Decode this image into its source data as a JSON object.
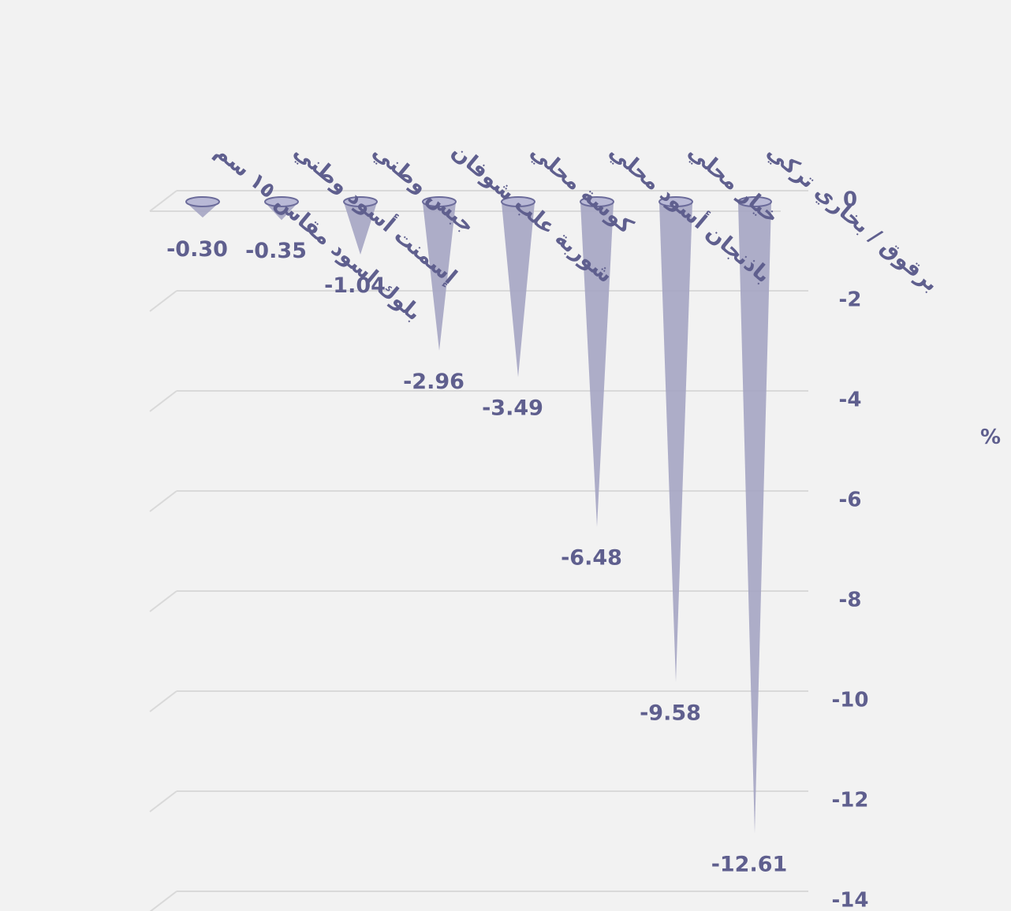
{
  "chart_data": {
    "type": "bar",
    "shape": "cone",
    "orientation": "vertical",
    "direction": "rtl",
    "categories": [
      "برقوق / بخاري تركي",
      "خيار محلي",
      "باذنجان أسود محلي",
      "كوسة محلي",
      "شوربة علب شوفان",
      "جبس وطني",
      "إسمنت أسود وطني",
      "بلوك اسود مقاس ١٥ سم"
    ],
    "values": [
      -12.61,
      -9.58,
      -6.48,
      -3.49,
      -2.96,
      -1.04,
      -0.35,
      -0.3
    ],
    "data_labels": [
      "-12.61",
      "-9.58",
      "-6.48",
      "-3.49",
      "-2.96",
      "-1.04",
      "-0.35",
      "-0.30"
    ],
    "yticks": [
      "0",
      "-2",
      "-4",
      "-6",
      "-8",
      "-10",
      "-12",
      "-14"
    ],
    "ylim": [
      -14,
      0
    ],
    "yaxis_position": "right",
    "unit": "%",
    "grid": true,
    "colors": {
      "bar": "#a3a3c2",
      "bar_top": "#b9b9d6",
      "bar_outline": "#6b6b9a",
      "text": "#5f5f8e",
      "grid": "#d9d9d9"
    }
  }
}
